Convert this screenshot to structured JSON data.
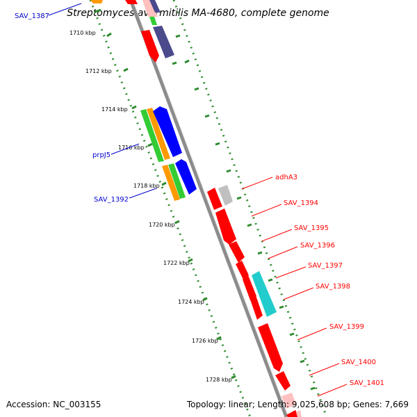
{
  "title": "Streptomyces avermitilis MA-4680, complete genome",
  "accession_text": "Accession: NC_003155",
  "summary_text": "Topology: linear; Length: 9,025,608 bp; Genes: 7,669",
  "colors": {
    "backbone": "#8c8c8c",
    "tick_dots": "#2e8b2e",
    "red": "#ff0000",
    "blue": "#0000ff",
    "green": "#33cc33",
    "orange": "#ff9900",
    "navy": "#4a4a8c",
    "cyan": "#22cccc",
    "gray": "#c0c0c0",
    "pink": "#ffc0c0",
    "label_blue": "#0000cc",
    "label_red": "#ff0000"
  },
  "ticks": [
    "1710 kbp",
    "1712 kbp",
    "1714 kbp",
    "1716 kbp",
    "1718 kbp",
    "1720 kbp",
    "1722 kbp",
    "1724 kbp",
    "1726 kbp",
    "1728 kbp"
  ],
  "left_labels": [
    {
      "id": "sav1387",
      "text": "SAV_1387"
    },
    {
      "id": "prpj5",
      "text": "prpJ5"
    },
    {
      "id": "sav1392",
      "text": "SAV_1392"
    }
  ],
  "right_labels": [
    {
      "id": "adha3",
      "text": "adhA3"
    },
    {
      "id": "sav1394",
      "text": "SAV_1394"
    },
    {
      "id": "sav1395",
      "text": "SAV_1395"
    },
    {
      "id": "sav1396",
      "text": "SAV_1396"
    },
    {
      "id": "sav1397",
      "text": "SAV_1397"
    },
    {
      "id": "sav1398",
      "text": "SAV_1398"
    },
    {
      "id": "sav1399",
      "text": "SAV_1399"
    },
    {
      "id": "sav1400",
      "text": "SAV_1400"
    },
    {
      "id": "sav1401",
      "text": "SAV_1401"
    }
  ]
}
